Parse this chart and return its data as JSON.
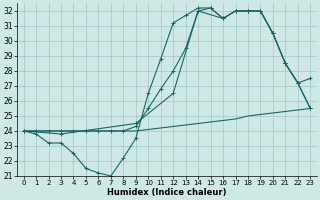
{
  "xlabel": "Humidex (Indice chaleur)",
  "xlim": [
    -0.5,
    23.5
  ],
  "ylim": [
    21,
    32.5
  ],
  "yticks": [
    21,
    22,
    23,
    24,
    25,
    26,
    27,
    28,
    29,
    30,
    31,
    32
  ],
  "xticks": [
    0,
    1,
    2,
    3,
    4,
    5,
    6,
    7,
    8,
    9,
    10,
    11,
    12,
    13,
    14,
    15,
    16,
    17,
    18,
    19,
    20,
    21,
    22,
    23
  ],
  "background_color": "#cde8e5",
  "grid_color": "#a0c8c4",
  "line_color": "#1a6666",
  "lines": [
    {
      "x": [
        0,
        1,
        2,
        3,
        4,
        5,
        6,
        7,
        8,
        9,
        10,
        11,
        12,
        13,
        14,
        15,
        16,
        17,
        18,
        19,
        20,
        21,
        22,
        23
      ],
      "y": [
        24,
        23.8,
        23.2,
        23.2,
        22.5,
        21.5,
        21.2,
        21.0,
        22.2,
        23.5,
        26.5,
        28.8,
        31.2,
        31.7,
        32.2,
        32.2,
        31.5,
        32.0,
        32.0,
        32.0,
        30.5,
        28.5,
        27.2,
        27.5
      ],
      "marker": true
    },
    {
      "x": [
        0,
        1,
        2,
        3,
        4,
        5,
        6,
        7,
        8,
        9,
        10,
        11,
        12,
        13,
        14,
        15,
        16,
        17,
        18,
        19,
        20,
        21,
        22,
        23
      ],
      "y": [
        24,
        24,
        24,
        24,
        24,
        24,
        24,
        24,
        24,
        24.3,
        25.5,
        26.8,
        28.0,
        29.5,
        32.0,
        32.2,
        31.5,
        32.0,
        32.0,
        32.0,
        30.5,
        28.5,
        27.2,
        25.5
      ],
      "marker": true
    },
    {
      "x": [
        0,
        3,
        9,
        12,
        14,
        16,
        17,
        18,
        19,
        20,
        21,
        22,
        23
      ],
      "y": [
        24,
        23.8,
        24.5,
        26.5,
        32.0,
        31.5,
        32.0,
        32.0,
        32.0,
        30.5,
        28.5,
        27.2,
        25.5
      ],
      "marker": true
    },
    {
      "x": [
        0,
        1,
        2,
        3,
        4,
        5,
        6,
        7,
        8,
        9,
        10,
        11,
        12,
        13,
        14,
        15,
        16,
        17,
        18,
        19,
        20,
        21,
        22,
        23
      ],
      "y": [
        24,
        24,
        24,
        24,
        24,
        24,
        24,
        24,
        24,
        24.0,
        24.1,
        24.2,
        24.3,
        24.4,
        24.5,
        24.6,
        24.7,
        24.8,
        25.0,
        25.1,
        25.2,
        25.3,
        25.4,
        25.5
      ],
      "marker": false
    }
  ]
}
